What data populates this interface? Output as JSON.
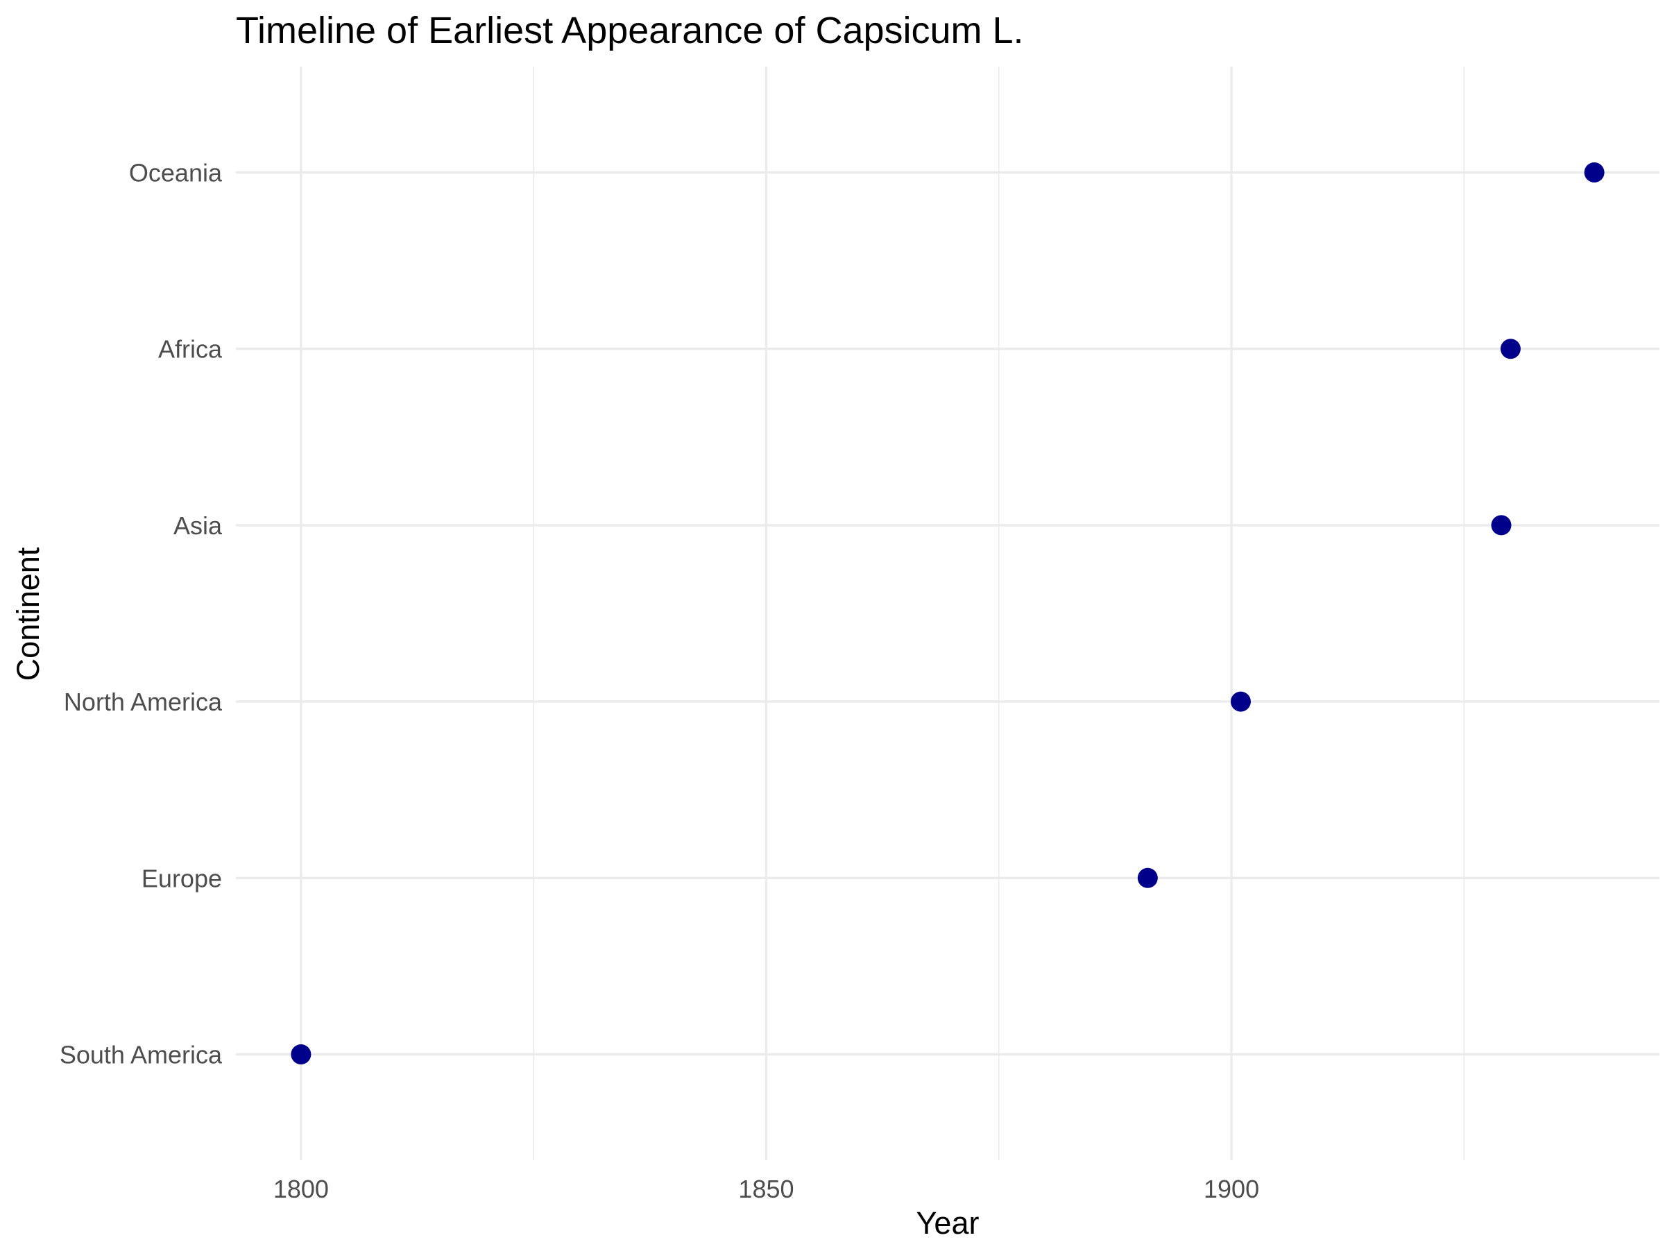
{
  "chart_data": {
    "type": "scatter",
    "title": "Timeline of Earliest Appearance of Capsicum L.",
    "xlabel": "Year",
    "ylabel": "Continent",
    "xlim": [
      1793,
      1946
    ],
    "x_ticks": [
      1800,
      1850,
      1900
    ],
    "x_tick_labels": [
      "1800",
      "1850",
      "1900"
    ],
    "x_minor_ticks": [
      1825,
      1875,
      1925
    ],
    "categories": [
      "South America",
      "Europe",
      "North America",
      "Asia",
      "Africa",
      "Oceania"
    ],
    "points": [
      {
        "category": "South America",
        "x": 1800
      },
      {
        "category": "Europe",
        "x": 1891
      },
      {
        "category": "North America",
        "x": 1901
      },
      {
        "category": "Asia",
        "x": 1929
      },
      {
        "category": "Africa",
        "x": 1930
      },
      {
        "category": "Oceania",
        "x": 1939
      }
    ],
    "grid": true,
    "legend": "none",
    "colors": {
      "point": "#00008b",
      "grid": "#ebebeb",
      "tick_text": "#4d4d4d",
      "title_text": "#000000"
    }
  }
}
